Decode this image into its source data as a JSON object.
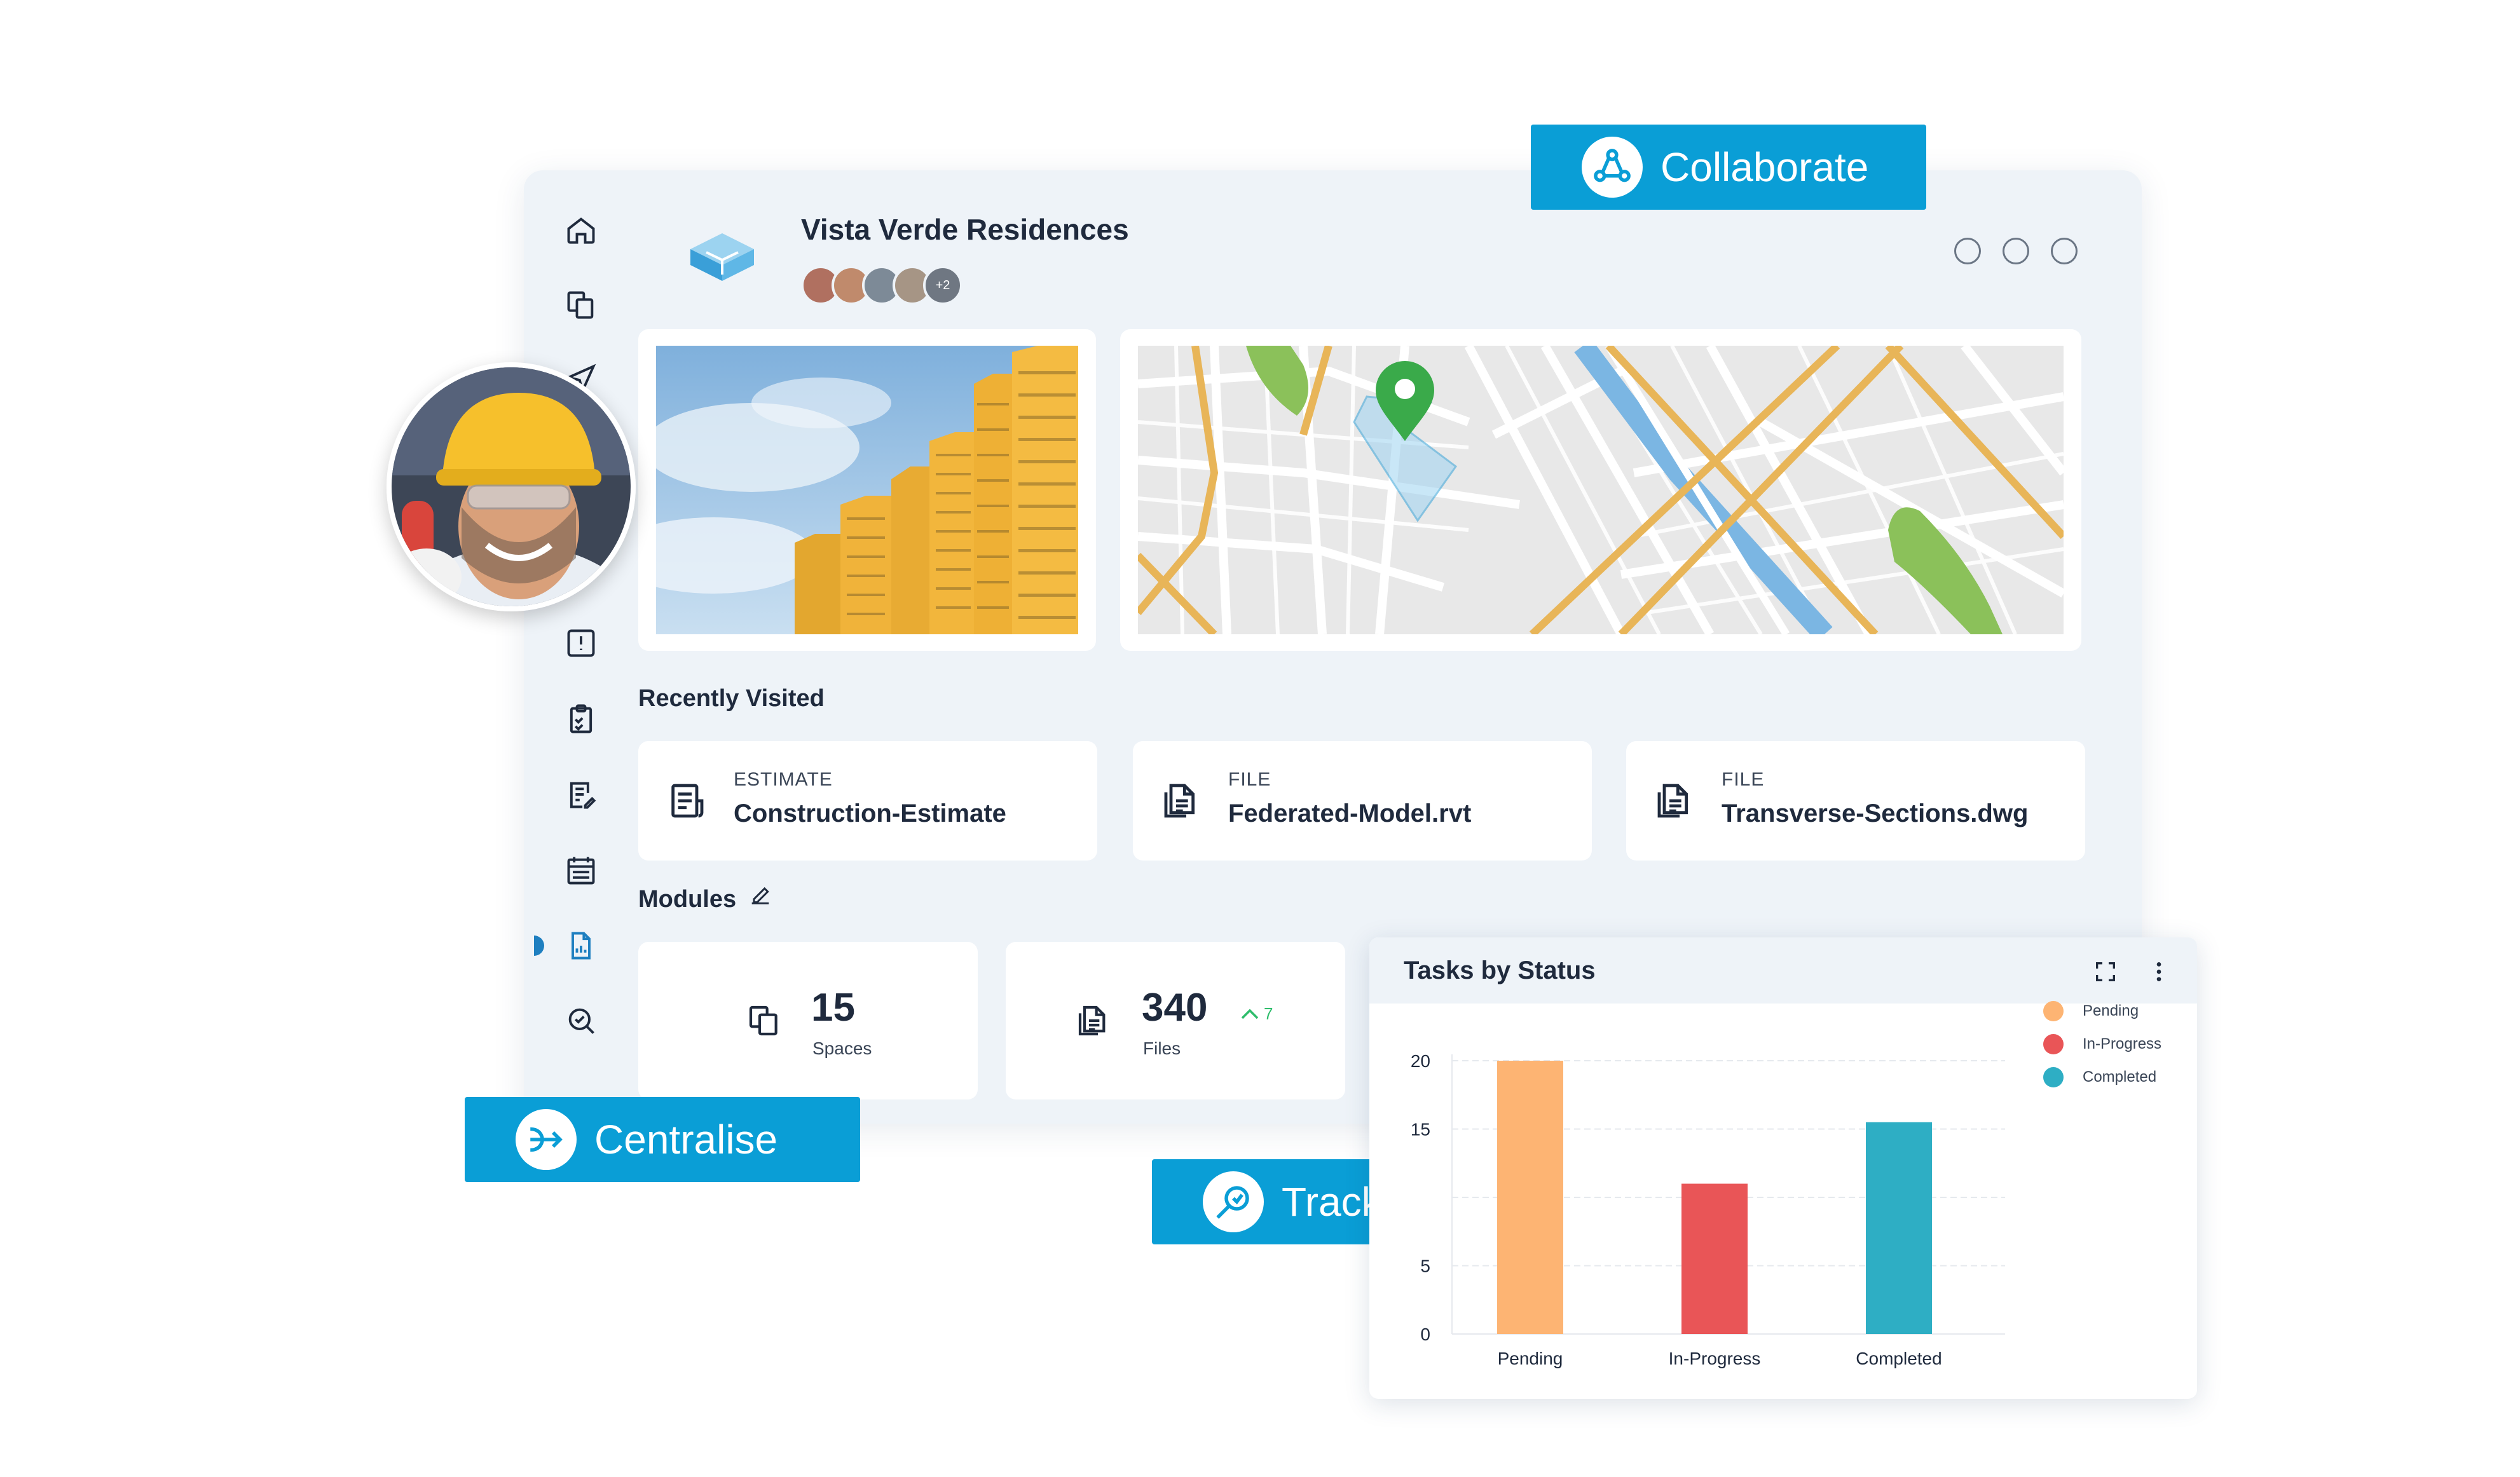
{
  "project": {
    "title": "Vista Verde Residences",
    "extra_members": "+2"
  },
  "sidebar": {
    "items": [
      {
        "icon": "home-icon"
      },
      {
        "icon": "spaces-icon"
      },
      {
        "icon": "send-icon"
      },
      {
        "icon": "alert-icon"
      },
      {
        "icon": "checklist-icon"
      },
      {
        "icon": "document-edit-icon"
      },
      {
        "icon": "schedule-icon"
      },
      {
        "icon": "reports-icon",
        "active": true
      },
      {
        "icon": "inspection-icon"
      }
    ]
  },
  "recently_visited": {
    "label": "Recently Visited",
    "items": [
      {
        "type": "ESTIMATE",
        "name": "Construction-Estimate",
        "icon": "estimate-icon"
      },
      {
        "type": "FILE",
        "name": "Federated-Model.rvt",
        "icon": "file-icon"
      },
      {
        "type": "FILE",
        "name": "Transverse-Sections.dwg",
        "icon": "file-icon"
      }
    ]
  },
  "modules": {
    "label": "Modules",
    "stats": [
      {
        "value": "15",
        "label": "Spaces",
        "icon": "spaces-icon"
      },
      {
        "value": "340",
        "label": "Files",
        "icon": "files-icon",
        "delta": "7"
      }
    ]
  },
  "tags": {
    "collaborate": "Collaborate",
    "centralise": "Centralise",
    "track": "Track"
  },
  "colors": {
    "accent": "#0a9ed6",
    "pending": "#fdb473",
    "in_progress": "#e95557",
    "completed": "#2eaec4"
  },
  "chart_data": {
    "type": "bar",
    "title": "Tasks by Status",
    "categories": [
      "Pending",
      "In-Progress",
      "Completed"
    ],
    "values": [
      20,
      11,
      15.5
    ],
    "colors": [
      "#fdb473",
      "#e95557",
      "#2eaec4"
    ],
    "yticks": [
      "0",
      "5",
      "15",
      "20"
    ],
    "ylim": [
      0,
      20
    ],
    "grid": true,
    "legend": {
      "position": "right",
      "entries": [
        "Pending",
        "In-Progress",
        "Completed"
      ]
    }
  }
}
